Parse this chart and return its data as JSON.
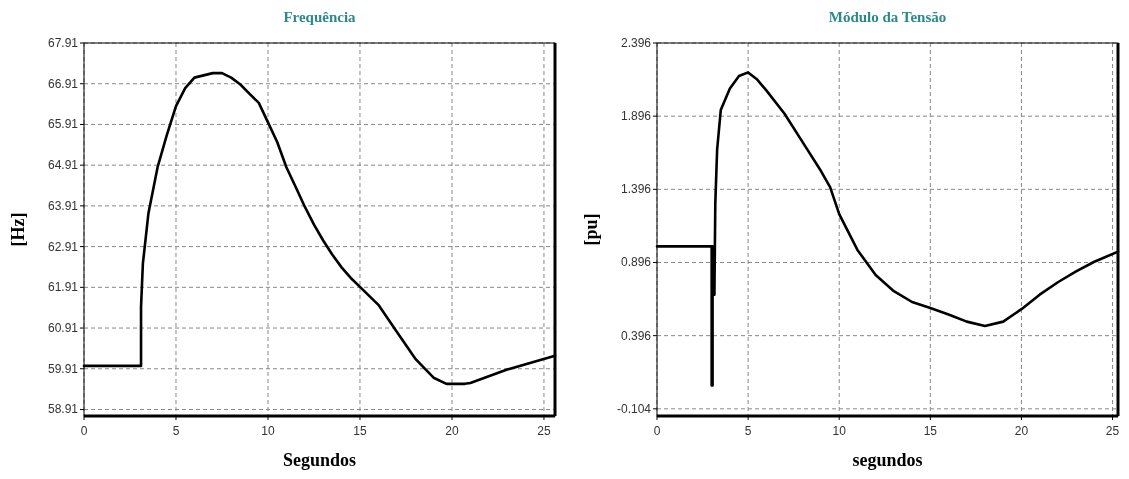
{
  "chart_data": [
    {
      "type": "line",
      "title": "Frequência",
      "xlabel": "Segundos",
      "ylabel": "[Hz]",
      "xlim": [
        0,
        25.6
      ],
      "ylim": [
        58.75,
        67.91
      ],
      "xticks": [
        0,
        5,
        10,
        15,
        20,
        25
      ],
      "yticks": [
        58.91,
        59.91,
        60.91,
        61.91,
        62.91,
        63.91,
        64.91,
        65.91,
        66.91,
        67.91
      ],
      "grid": true,
      "marker": "none",
      "line_style": "solid",
      "series": [
        {
          "color": "#000000",
          "x": [
            0,
            3.1,
            3.1,
            3.2,
            3.5,
            4,
            4.5,
            5,
            5.5,
            6,
            7,
            7.5,
            8,
            8.5,
            9,
            9.5,
            10,
            10.5,
            11,
            11.5,
            12,
            12.5,
            13,
            13.5,
            14,
            14.5,
            15,
            16,
            17,
            18,
            19,
            19.7,
            20.7,
            21,
            23,
            25.6
          ],
          "values": [
            59.98,
            59.98,
            61.43,
            62.49,
            63.72,
            64.86,
            65.65,
            66.36,
            66.8,
            67.06,
            67.17,
            67.17,
            67.06,
            66.89,
            66.66,
            66.44,
            65.96,
            65.48,
            64.86,
            64.38,
            63.89,
            63.45,
            63.06,
            62.71,
            62.4,
            62.14,
            61.92,
            61.48,
            60.82,
            60.16,
            59.69,
            59.54,
            59.54,
            59.56,
            59.89,
            60.23
          ]
        }
      ]
    },
    {
      "type": "line",
      "title": "Módulo da Tensão",
      "xlabel": "segundos",
      "ylabel": "[pu]",
      "xlim": [
        0,
        25.3
      ],
      "ylim": [
        -0.153,
        2.396
      ],
      "xticks": [
        0,
        5,
        10,
        15,
        20,
        25
      ],
      "yticks": [
        -0.104,
        0.396,
        0.896,
        1.396,
        1.896,
        2.396
      ],
      "grid": true,
      "marker": "none",
      "line_style": "solid",
      "series": [
        {
          "color": "#000000",
          "x": [
            0,
            3,
            3,
            3.05,
            3.05,
            3.15,
            3.2,
            3.3,
            3.5,
            4,
            4.5,
            5,
            5.5,
            6,
            7,
            8,
            9,
            9.5,
            10,
            11,
            12,
            13,
            14,
            15,
            16,
            17,
            18,
            19,
            20,
            21,
            22,
            23,
            24,
            25.3
          ],
          "values": [
            1.006,
            1.006,
            0.055,
            0.055,
            1.006,
            0.676,
            1.3,
            1.668,
            1.938,
            2.085,
            2.17,
            2.195,
            2.146,
            2.072,
            1.913,
            1.717,
            1.521,
            1.411,
            1.227,
            0.982,
            0.81,
            0.7,
            0.626,
            0.585,
            0.541,
            0.492,
            0.462,
            0.492,
            0.577,
            0.676,
            0.761,
            0.835,
            0.901,
            0.97
          ]
        }
      ]
    }
  ]
}
